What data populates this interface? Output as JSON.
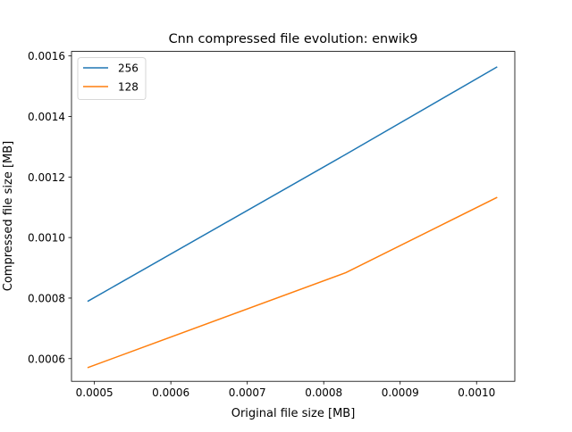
{
  "chart_data": {
    "type": "line",
    "title": "Cnn compressed file evolution: enwik9",
    "xlabel": "Original file size [MB]",
    "ylabel": "Compressed file size [MB]",
    "xlim": [
      0.00047,
      0.00105
    ],
    "ylim": [
      0.000525,
      0.001615
    ],
    "xticks": [
      "0.0005",
      "0.0006",
      "0.0007",
      "0.0008",
      "0.0009",
      "0.0010"
    ],
    "xtick_values": [
      0.0005,
      0.0006,
      0.0007,
      0.0008,
      0.0009,
      0.001
    ],
    "yticks": [
      "0.0006",
      "0.0008",
      "0.0010",
      "0.0012",
      "0.0014",
      "0.0016"
    ],
    "ytick_values": [
      0.0006,
      0.0008,
      0.001,
      0.0012,
      0.0014,
      0.0016
    ],
    "grid": false,
    "legend_position": "top-left",
    "series": [
      {
        "name": "256",
        "color": "#1f77b4",
        "x": [
          0.000491,
          0.000829,
          0.001027
        ],
        "y": [
          0.000789,
          0.001275,
          0.001564
        ]
      },
      {
        "name": "128",
        "color": "#ff7f0e",
        "x": [
          0.000491,
          0.000829,
          0.001027
        ],
        "y": [
          0.00057,
          0.000884,
          0.001133
        ]
      }
    ]
  }
}
